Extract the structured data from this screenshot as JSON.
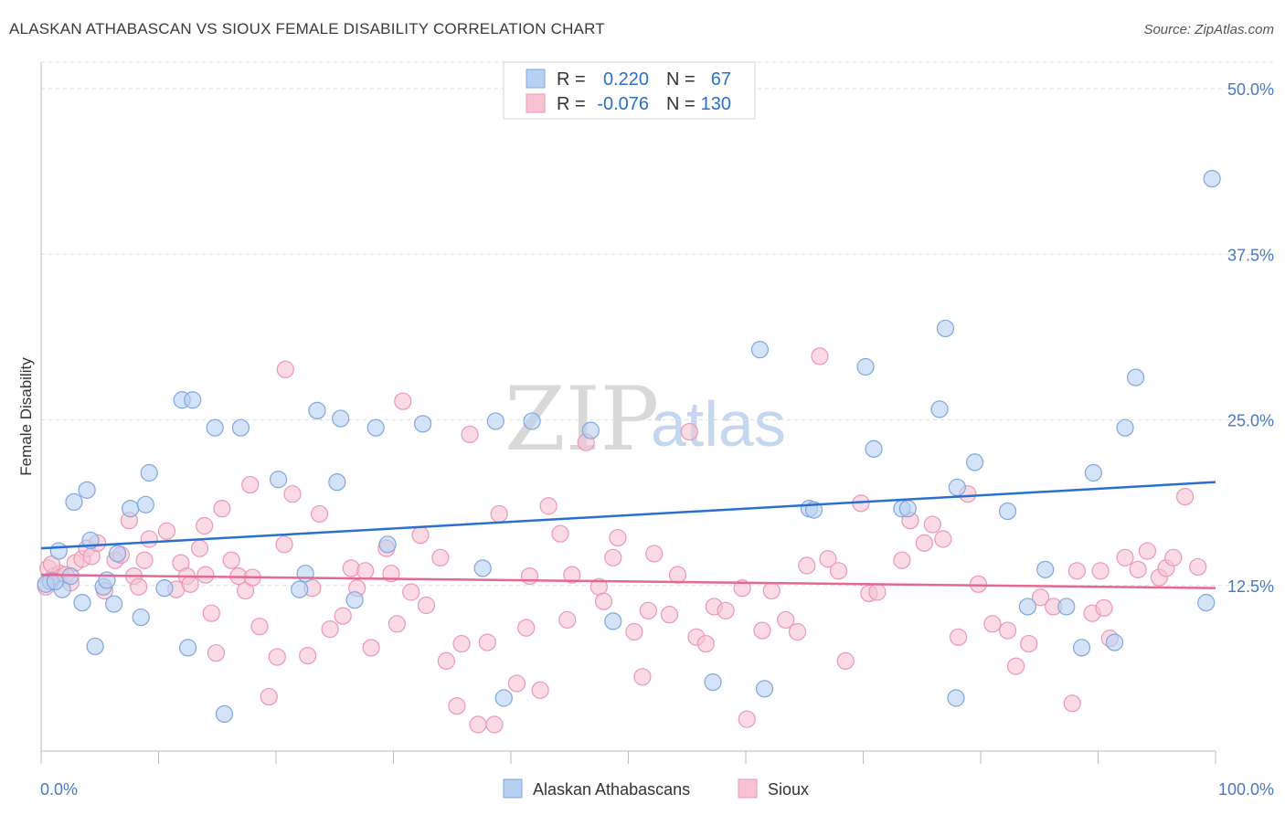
{
  "title": "ALASKAN ATHABASCAN VS SIOUX FEMALE DISABILITY CORRELATION CHART",
  "source": "Source: ZipAtlas.com",
  "watermark": {
    "zip": "ZIP",
    "atlas": "atlas"
  },
  "legend_top": {
    "rows": [
      {
        "r_label": "R =",
        "r_value": "0.220",
        "n_label": "N =",
        "n_value": "67"
      },
      {
        "r_label": "R =",
        "r_value": "-0.076",
        "n_label": "N =",
        "n_value": "130"
      }
    ]
  },
  "legend_bottom": {
    "series_a": "Alaskan Athabascans",
    "series_b": "Sioux"
  },
  "colors": {
    "blue_fill": "#b8d0f2",
    "blue_stroke": "#7ea7df",
    "blue_line": "#2a6fcf",
    "pink_fill": "#f7c3d3",
    "pink_stroke": "#eb97b3",
    "pink_line": "#e56892",
    "text_blue": "#4a78c2"
  },
  "chart_data": {
    "type": "scatter",
    "title": "ALASKAN ATHABASCAN VS SIOUX FEMALE DISABILITY CORRELATION CHART",
    "xlabel": "",
    "ylabel": "Female Disability",
    "xlim": [
      0,
      100
    ],
    "ylim": [
      0,
      52
    ],
    "x_tick_labels": [
      "0.0%",
      "100.0%"
    ],
    "y_ticks": [
      12.5,
      25.0,
      37.5,
      50.0
    ],
    "y_tick_labels": [
      "12.5%",
      "25.0%",
      "37.5%",
      "50.0%"
    ],
    "series": [
      {
        "name": "Alaskan Athabascans",
        "color": "blue",
        "trend": {
          "x0": 0,
          "y0": 15.3,
          "x1": 100,
          "y1": 20.3
        },
        "points": [
          [
            0.8,
            12.8
          ],
          [
            1.5,
            15.1
          ],
          [
            1.8,
            12.2
          ],
          [
            2.5,
            13.2
          ],
          [
            2.8,
            18.8
          ],
          [
            3.5,
            11.2
          ],
          [
            3.9,
            19.7
          ],
          [
            4.2,
            15.9
          ],
          [
            4.6,
            7.9
          ],
          [
            5.3,
            12.4
          ],
          [
            5.6,
            12.9
          ],
          [
            6.2,
            11.1
          ],
          [
            6.5,
            14.9
          ],
          [
            7.6,
            18.3
          ],
          [
            8.5,
            10.1
          ],
          [
            8.9,
            18.6
          ],
          [
            9.2,
            21.0
          ],
          [
            10.5,
            12.3
          ],
          [
            12.0,
            26.5
          ],
          [
            12.5,
            7.8
          ],
          [
            12.9,
            26.5
          ],
          [
            14.8,
            24.4
          ],
          [
            15.6,
            2.8
          ],
          [
            17.0,
            24.4
          ],
          [
            20.2,
            20.5
          ],
          [
            22.0,
            12.2
          ],
          [
            22.5,
            13.4
          ],
          [
            23.5,
            25.7
          ],
          [
            25.2,
            20.3
          ],
          [
            25.5,
            25.1
          ],
          [
            26.7,
            11.4
          ],
          [
            28.5,
            24.4
          ],
          [
            29.5,
            15.6
          ],
          [
            32.5,
            24.7
          ],
          [
            37.6,
            13.8
          ],
          [
            38.7,
            24.9
          ],
          [
            39.4,
            4.0
          ],
          [
            41.8,
            24.9
          ],
          [
            46.8,
            24.2
          ],
          [
            48.7,
            9.8
          ],
          [
            57.2,
            5.2
          ],
          [
            61.2,
            30.3
          ],
          [
            61.6,
            4.7
          ],
          [
            65.4,
            18.3
          ],
          [
            65.8,
            18.2
          ],
          [
            70.2,
            29.0
          ],
          [
            70.9,
            22.8
          ],
          [
            73.3,
            18.3
          ],
          [
            73.8,
            18.3
          ],
          [
            76.5,
            25.8
          ],
          [
            77.0,
            31.9
          ],
          [
            77.9,
            4.0
          ],
          [
            78.0,
            19.9
          ],
          [
            79.5,
            21.8
          ],
          [
            82.3,
            18.1
          ],
          [
            84.0,
            10.9
          ],
          [
            85.5,
            13.7
          ],
          [
            87.3,
            10.9
          ],
          [
            88.6,
            7.8
          ],
          [
            89.6,
            21.0
          ],
          [
            91.4,
            8.2
          ],
          [
            92.3,
            24.4
          ],
          [
            93.2,
            28.2
          ],
          [
            99.2,
            11.2
          ],
          [
            99.7,
            43.2
          ],
          [
            0.4,
            12.6
          ],
          [
            1.2,
            12.8
          ]
        ]
      },
      {
        "name": "Sioux",
        "color": "pink",
        "trend": {
          "x0": 0,
          "y0": 13.3,
          "x1": 100,
          "y1": 12.3
        },
        "points": [
          [
            0.4,
            12.4
          ],
          [
            0.6,
            13.8
          ],
          [
            1.1,
            13.2
          ],
          [
            1.6,
            13.4
          ],
          [
            2.1,
            13.3
          ],
          [
            2.5,
            12.7
          ],
          [
            2.9,
            14.2
          ],
          [
            3.5,
            14.5
          ],
          [
            3.9,
            15.3
          ],
          [
            4.3,
            14.7
          ],
          [
            4.8,
            15.7
          ],
          [
            5.4,
            12.1
          ],
          [
            6.3,
            14.4
          ],
          [
            6.8,
            14.8
          ],
          [
            7.5,
            17.4
          ],
          [
            7.9,
            13.2
          ],
          [
            8.3,
            12.4
          ],
          [
            8.8,
            14.4
          ],
          [
            9.2,
            16.0
          ],
          [
            10.7,
            16.6
          ],
          [
            11.5,
            12.2
          ],
          [
            11.9,
            14.2
          ],
          [
            12.4,
            13.2
          ],
          [
            12.7,
            12.6
          ],
          [
            13.9,
            17.0
          ],
          [
            13.5,
            15.3
          ],
          [
            14.0,
            13.3
          ],
          [
            14.5,
            10.4
          ],
          [
            14.9,
            7.4
          ],
          [
            15.4,
            18.3
          ],
          [
            16.2,
            14.4
          ],
          [
            16.8,
            13.2
          ],
          [
            17.4,
            12.1
          ],
          [
            17.8,
            20.1
          ],
          [
            18.0,
            13.1
          ],
          [
            18.6,
            9.4
          ],
          [
            19.4,
            4.1
          ],
          [
            20.1,
            7.1
          ],
          [
            20.7,
            15.6
          ],
          [
            20.8,
            28.8
          ],
          [
            21.4,
            19.4
          ],
          [
            22.7,
            7.2
          ],
          [
            23.1,
            12.3
          ],
          [
            23.7,
            17.9
          ],
          [
            24.6,
            9.2
          ],
          [
            25.7,
            10.2
          ],
          [
            26.4,
            13.8
          ],
          [
            26.9,
            12.3
          ],
          [
            27.6,
            13.6
          ],
          [
            28.1,
            7.8
          ],
          [
            29.4,
            15.3
          ],
          [
            29.8,
            13.4
          ],
          [
            30.3,
            9.6
          ],
          [
            30.8,
            26.4
          ],
          [
            31.5,
            12.0
          ],
          [
            32.3,
            16.3
          ],
          [
            32.8,
            11.0
          ],
          [
            34.0,
            14.6
          ],
          [
            34.5,
            6.8
          ],
          [
            35.4,
            3.4
          ],
          [
            35.8,
            8.1
          ],
          [
            36.5,
            23.9
          ],
          [
            37.2,
            2.0
          ],
          [
            38.0,
            8.2
          ],
          [
            38.6,
            2.0
          ],
          [
            39.0,
            17.9
          ],
          [
            40.5,
            5.1
          ],
          [
            41.3,
            9.3
          ],
          [
            41.6,
            13.2
          ],
          [
            42.5,
            4.6
          ],
          [
            43.2,
            18.5
          ],
          [
            44.2,
            16.4
          ],
          [
            44.8,
            9.9
          ],
          [
            45.2,
            13.3
          ],
          [
            46.4,
            23.3
          ],
          [
            47.5,
            12.4
          ],
          [
            47.9,
            11.3
          ],
          [
            48.7,
            14.6
          ],
          [
            49.1,
            16.1
          ],
          [
            50.5,
            9.0
          ],
          [
            51.2,
            5.6
          ],
          [
            51.7,
            10.6
          ],
          [
            52.2,
            14.9
          ],
          [
            53.5,
            10.3
          ],
          [
            54.2,
            13.3
          ],
          [
            55.2,
            24.1
          ],
          [
            55.8,
            8.6
          ],
          [
            56.6,
            8.1
          ],
          [
            57.3,
            10.9
          ],
          [
            58.3,
            10.6
          ],
          [
            59.7,
            12.3
          ],
          [
            60.1,
            2.4
          ],
          [
            61.4,
            9.1
          ],
          [
            62.2,
            12.1
          ],
          [
            63.4,
            9.9
          ],
          [
            64.4,
            9.0
          ],
          [
            65.2,
            14.0
          ],
          [
            66.3,
            29.8
          ],
          [
            67.0,
            14.5
          ],
          [
            67.9,
            13.6
          ],
          [
            68.5,
            6.8
          ],
          [
            69.8,
            18.7
          ],
          [
            70.5,
            11.9
          ],
          [
            71.2,
            12.0
          ],
          [
            73.3,
            14.4
          ],
          [
            74.0,
            17.4
          ],
          [
            75.2,
            15.7
          ],
          [
            75.9,
            17.1
          ],
          [
            76.8,
            16.0
          ],
          [
            78.1,
            8.6
          ],
          [
            78.9,
            19.4
          ],
          [
            79.8,
            12.6
          ],
          [
            81.0,
            9.6
          ],
          [
            82.3,
            9.1
          ],
          [
            83.0,
            6.4
          ],
          [
            84.1,
            8.1
          ],
          [
            85.1,
            11.6
          ],
          [
            86.2,
            10.9
          ],
          [
            87.8,
            3.6
          ],
          [
            88.2,
            13.6
          ],
          [
            89.5,
            10.4
          ],
          [
            90.2,
            13.6
          ],
          [
            90.5,
            10.8
          ],
          [
            91.0,
            8.5
          ],
          [
            92.3,
            14.6
          ],
          [
            93.4,
            13.7
          ],
          [
            94.2,
            15.1
          ],
          [
            95.2,
            13.1
          ],
          [
            95.8,
            13.8
          ],
          [
            96.4,
            14.6
          ],
          [
            97.4,
            19.2
          ],
          [
            98.5,
            13.9
          ],
          [
            0.9,
            14.1
          ]
        ]
      }
    ]
  }
}
